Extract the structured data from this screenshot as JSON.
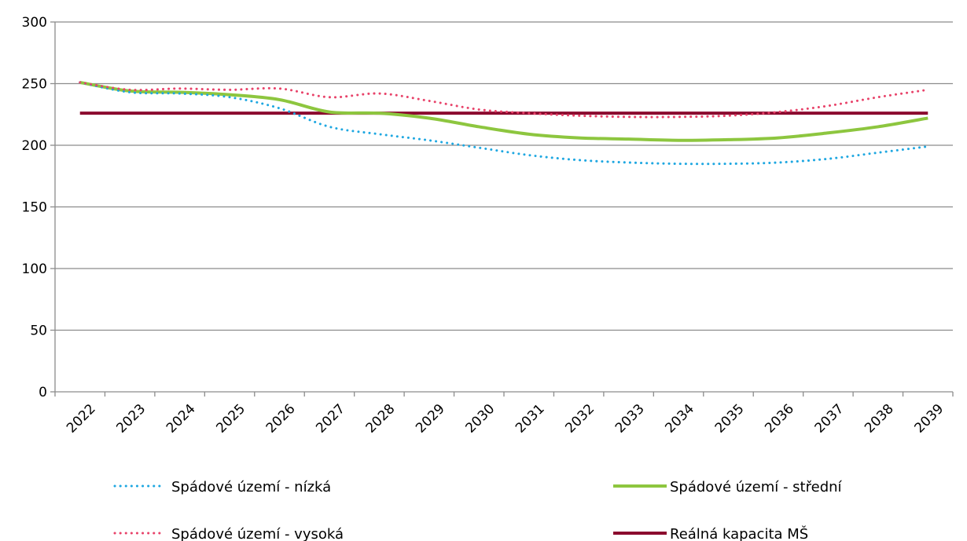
{
  "chart_data": {
    "type": "line",
    "title": "",
    "xlabel": "",
    "ylabel": "",
    "categories": [
      "2022",
      "2023",
      "2024",
      "2025",
      "2026",
      "2027",
      "2028",
      "2029",
      "2030",
      "2031",
      "2032",
      "2033",
      "2034",
      "2035",
      "2036",
      "2037",
      "2038",
      "2039"
    ],
    "ylim": [
      0,
      300
    ],
    "yticks": [
      "0",
      "50",
      "100",
      "150",
      "200",
      "250",
      "300"
    ],
    "grid": "horizontal",
    "legend_position": "bottom",
    "series": [
      {
        "name": "Spádové území - nízká",
        "style": "dotted",
        "color": "#1ea7e1",
        "values": [
          251,
          243,
          242,
          239,
          230,
          215,
          209,
          204,
          198,
          192,
          188,
          186,
          185,
          185,
          186,
          189,
          194,
          199
        ]
      },
      {
        "name": "Spádové území - střední",
        "style": "solid",
        "color": "#8dc63f",
        "values": [
          251,
          244,
          243,
          241,
          237,
          227,
          226,
          222,
          215,
          209,
          206,
          205,
          204,
          204.5,
          206,
          210,
          215,
          222
        ]
      },
      {
        "name": "Spádové území - vysoká",
        "style": "dotted",
        "color": "#e8436a",
        "values": [
          251,
          245,
          246,
          245,
          246,
          239,
          242,
          236,
          229,
          226,
          224,
          223,
          223,
          224,
          227,
          232,
          239,
          245
        ]
      },
      {
        "name": "Reálná kapacita MŠ",
        "style": "solid",
        "color": "#8b0a2e",
        "values": [
          226,
          226,
          226,
          226,
          226,
          226,
          226,
          226,
          226,
          226,
          226,
          226,
          226,
          226,
          226,
          226,
          226,
          226
        ]
      }
    ]
  }
}
